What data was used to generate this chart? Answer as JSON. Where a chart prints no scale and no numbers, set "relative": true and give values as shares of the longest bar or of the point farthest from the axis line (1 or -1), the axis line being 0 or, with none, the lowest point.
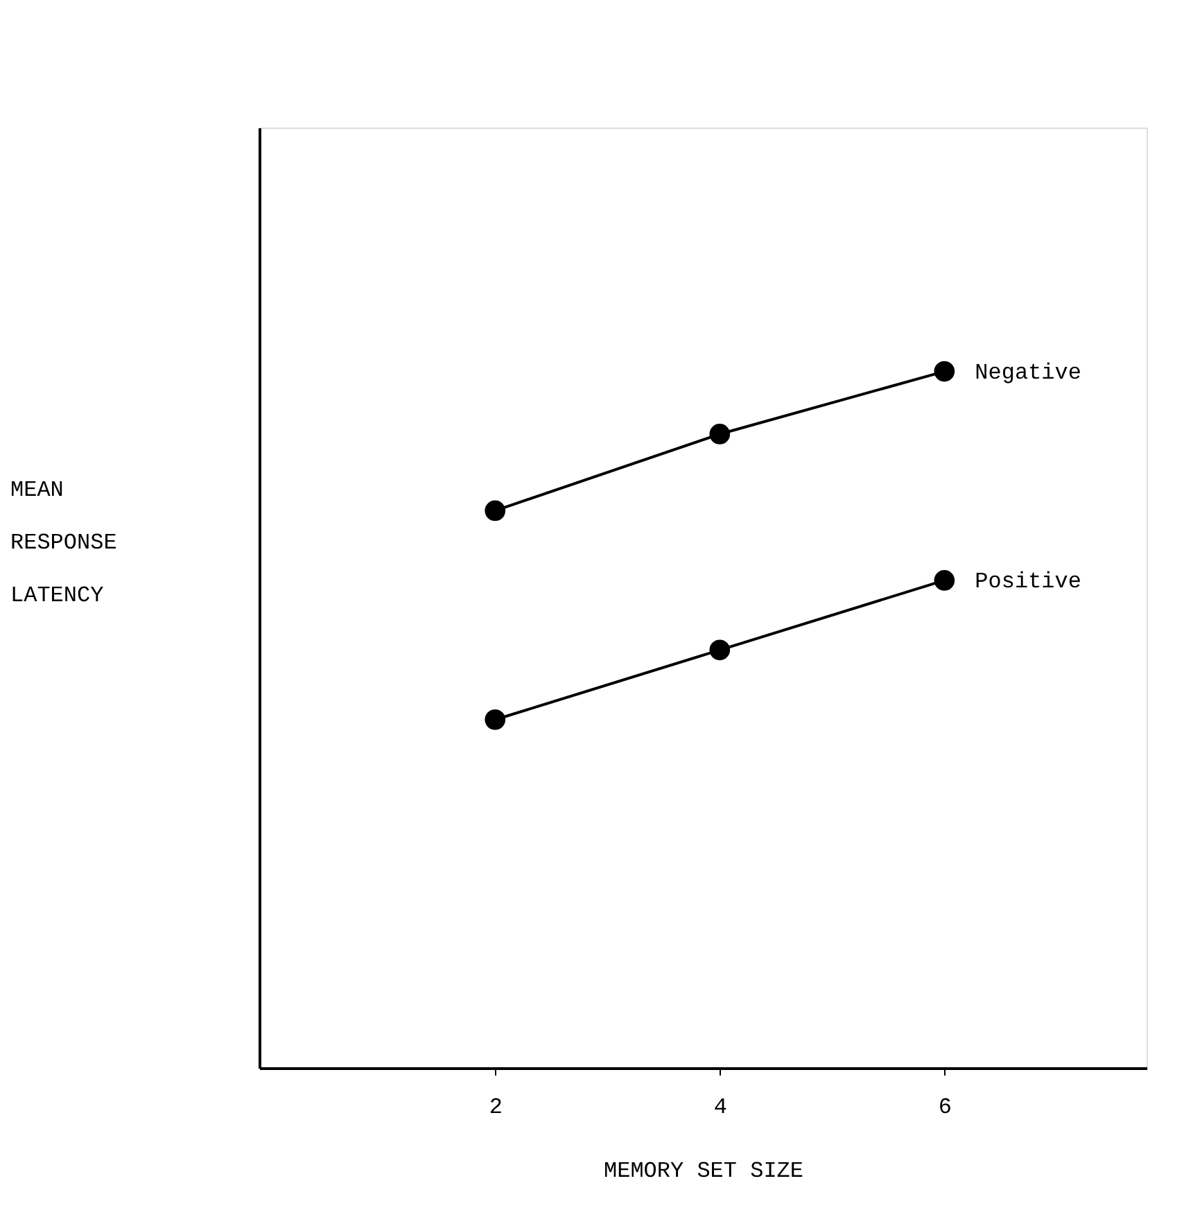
{
  "chart_data": {
    "type": "line",
    "relative": true,
    "xlabel": "MEMORY SET SIZE",
    "ylabel": "MEAN RESPONSE LATENCY",
    "x": [
      2,
      4,
      6
    ],
    "xlim": [
      -0.1,
      7.8
    ],
    "xticks": [
      2,
      4,
      6
    ],
    "marker": "circle",
    "line_style": "solid",
    "grid": false,
    "legend": false,
    "series": [
      {
        "name": "Negative",
        "color": "#000000",
        "values": [
          0.8,
          0.91,
          1
        ]
      },
      {
        "name": "Positive",
        "color": "#000000",
        "values": [
          0.5,
          0.6,
          0.7
        ]
      }
    ]
  }
}
